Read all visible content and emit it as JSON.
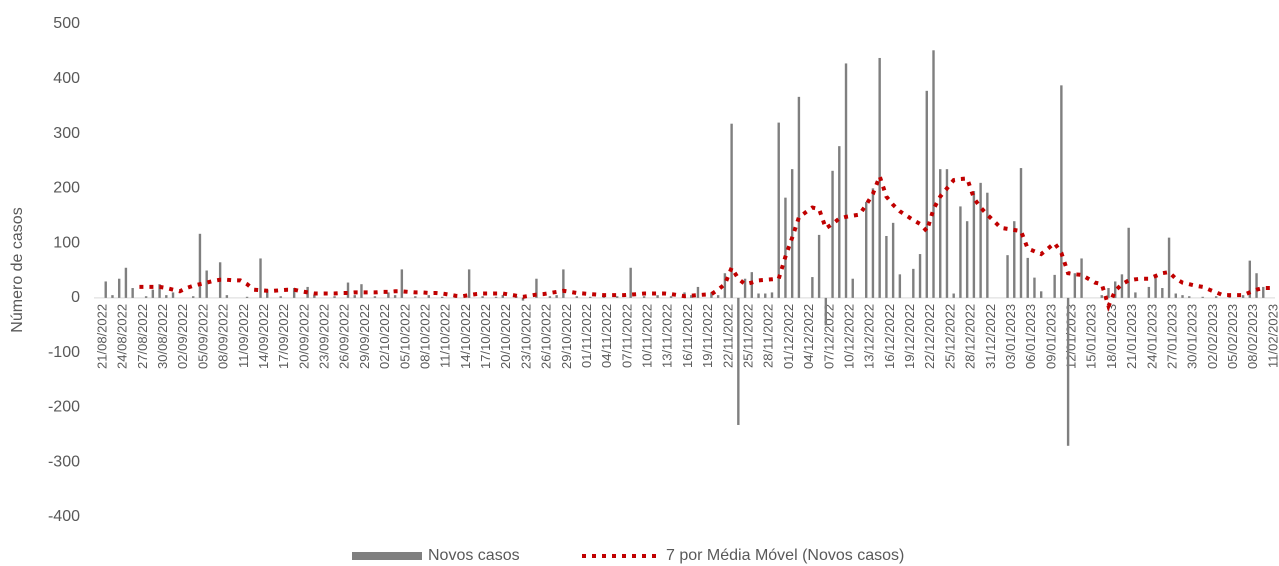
{
  "chart_data": {
    "type": "bar",
    "y_label": "Número de casos",
    "categories": [
      "21/08/2022",
      null,
      null,
      "24/08/2022",
      null,
      null,
      "27/08/2022",
      null,
      null,
      "30/08/2022",
      null,
      null,
      "02/09/2022",
      null,
      null,
      "05/09/2022",
      null,
      null,
      "08/09/2022",
      null,
      null,
      "11/09/2022",
      null,
      null,
      "14/09/2022",
      null,
      null,
      "17/09/2022",
      null,
      null,
      "20/09/2022",
      null,
      null,
      "23/09/2022",
      null,
      null,
      "26/09/2022",
      null,
      null,
      "29/09/2022",
      null,
      null,
      "02/10/2022",
      null,
      null,
      "05/10/2022",
      null,
      null,
      "08/10/2022",
      null,
      null,
      "11/10/2022",
      null,
      null,
      "14/10/2022",
      null,
      null,
      "17/10/2022",
      null,
      null,
      "20/10/2022",
      null,
      null,
      "23/10/2022",
      null,
      null,
      "26/10/2022",
      null,
      null,
      "29/10/2022",
      null,
      null,
      "01/11/2022",
      null,
      null,
      "04/11/2022",
      null,
      null,
      "07/11/2022",
      null,
      null,
      "10/11/2022",
      null,
      null,
      "13/11/2022",
      null,
      null,
      "16/11/2022",
      null,
      null,
      "19/11/2022",
      null,
      null,
      "22/11/2022",
      null,
      null,
      "25/11/2022",
      null,
      null,
      "28/11/2022",
      null,
      null,
      "01/12/2022",
      null,
      null,
      "04/12/2022",
      null,
      null,
      "07/12/2022",
      null,
      null,
      "10/12/2022",
      null,
      null,
      "13/12/2022",
      null,
      null,
      "16/12/2022",
      null,
      null,
      "19/12/2022",
      null,
      null,
      "22/12/2022",
      null,
      null,
      "25/12/2022",
      null,
      null,
      "28/12/2022",
      null,
      null,
      "31/12/2022",
      null,
      null,
      "03/01/2023",
      null,
      null,
      "06/01/2023",
      null,
      null,
      "09/01/2023",
      null,
      null,
      "12/01/2023",
      null,
      null,
      "15/01/2023",
      null,
      null,
      "18/01/2023",
      null,
      null,
      "21/01/2023",
      null,
      null,
      "24/01/2023",
      null,
      null,
      "27/01/2023",
      null,
      null,
      "30/01/2023",
      null,
      null,
      "02/02/2023",
      null,
      null,
      "05/02/2023",
      null,
      null,
      "08/02/2023",
      null,
      null,
      "11/02/2023"
    ],
    "series": [
      {
        "name": "Novos casos",
        "type": "bar",
        "color": "#7f7f7f",
        "values": [
          0,
          30,
          5,
          35,
          55,
          18,
          0,
          3,
          15,
          25,
          5,
          10,
          0,
          0,
          3,
          117,
          50,
          0,
          65,
          5,
          0,
          0,
          2,
          0,
          72,
          15,
          0,
          3,
          0,
          18,
          0,
          20,
          5,
          0,
          0,
          3,
          0,
          28,
          5,
          25,
          0,
          3,
          0,
          10,
          5,
          52,
          0,
          3,
          0,
          5,
          0,
          2,
          0,
          3,
          0,
          52,
          0,
          3,
          0,
          2,
          5,
          0,
          3,
          -5,
          0,
          35,
          0,
          3,
          5,
          52,
          0,
          3,
          0,
          2,
          0,
          5,
          0,
          3,
          0,
          55,
          0,
          3,
          0,
          5,
          0,
          3,
          0,
          10,
          5,
          20,
          0,
          10,
          5,
          45,
          318,
          -232,
          35,
          47,
          8,
          8,
          10,
          320,
          183,
          235,
          367,
          0,
          38,
          115,
          -50,
          232,
          277,
          428,
          35,
          0,
          175,
          200,
          438,
          113,
          137,
          43,
          0,
          53,
          80,
          378,
          452,
          235,
          235,
          8,
          167,
          140,
          195,
          210,
          192,
          0,
          0,
          78,
          140,
          237,
          73,
          37,
          12,
          0,
          42,
          388,
          -270,
          45,
          72,
          0,
          0,
          5,
          18,
          30,
          43,
          128,
          10,
          0,
          20,
          37,
          18,
          110,
          8,
          5,
          3,
          0,
          2,
          0,
          3,
          0,
          2,
          0,
          5,
          68,
          45,
          20,
          0
        ]
      },
      {
        "name": "7 por Média Móvel (Novos casos)",
        "type": "line",
        "color": "#c00000",
        "values": [
          null,
          null,
          null,
          null,
          null,
          null,
          20,
          20,
          20,
          20,
          18,
          15,
          12,
          18,
          22,
          25,
          28,
          31,
          33,
          33,
          32,
          32,
          25,
          15,
          14,
          13,
          13,
          14,
          15,
          15,
          12,
          10,
          8,
          8,
          8,
          8,
          9,
          9,
          10,
          10,
          10,
          10,
          11,
          11,
          12,
          12,
          11,
          10,
          10,
          9,
          9,
          8,
          6,
          4,
          3,
          5,
          7,
          8,
          8,
          8,
          8,
          6,
          4,
          2,
          4,
          6,
          7,
          9,
          11,
          13,
          11,
          9,
          8,
          7,
          6,
          5,
          5,
          5,
          5,
          6,
          7,
          8,
          8,
          8,
          8,
          7,
          5,
          3,
          4,
          5,
          6,
          7,
          15,
          25,
          55,
          35,
          25,
          28,
          32,
          33,
          34,
          35,
          75,
          110,
          147,
          156,
          165,
          162,
          127,
          135,
          145,
          148,
          150,
          152,
          170,
          190,
          222,
          185,
          170,
          158,
          150,
          142,
          135,
          122,
          162,
          185,
          200,
          215,
          217,
          218,
          182,
          165,
          152,
          140,
          128,
          126,
          124,
          122,
          90,
          85,
          80,
          90,
          100,
          82,
          45,
          43,
          42,
          35,
          28,
          25,
          -15,
          13,
          25,
          32,
          34,
          35,
          35,
          40,
          45,
          47,
          35,
          28,
          25,
          22,
          20,
          15,
          10,
          5,
          5,
          5,
          5,
          10,
          15,
          18,
          18
        ]
      }
    ],
    "ylim": [
      -400,
      500
    ],
    "yticks": [
      -400,
      -300,
      -200,
      -100,
      0,
      100,
      200,
      300,
      400,
      500
    ],
    "grid": false,
    "legend": "bottom"
  }
}
